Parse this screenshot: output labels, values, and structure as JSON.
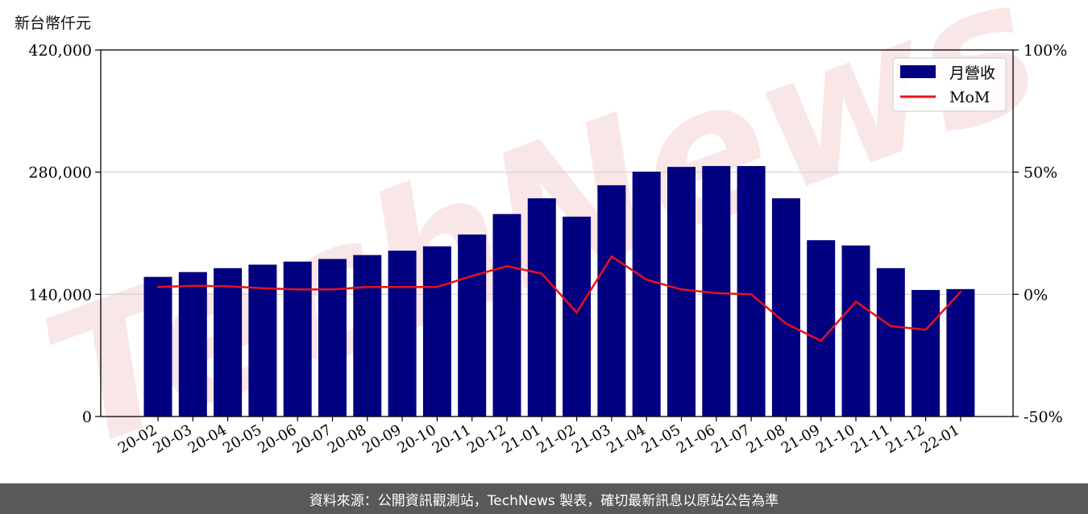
{
  "chart_data": {
    "type": "bar",
    "categories": [
      "20-02",
      "20-03",
      "20-04",
      "20-05",
      "20-06",
      "20-07",
      "20-08",
      "20-09",
      "20-10",
      "20-11",
      "20-12",
      "21-01",
      "21-02",
      "21-03",
      "21-04",
      "21-05",
      "21-06",
      "21-07",
      "21-08",
      "21-09",
      "21-10",
      "21-11",
      "21-12",
      "22-01"
    ],
    "series": [
      {
        "name": "月營收",
        "type": "bar",
        "axis": "left",
        "color": "#000080",
        "values": [
          160000,
          165500,
          170000,
          174000,
          177500,
          180500,
          185000,
          190000,
          195000,
          208500,
          232000,
          250000,
          229000,
          265000,
          280500,
          286000,
          287000,
          287000,
          250000,
          202000,
          196000,
          170000,
          145000,
          146000
        ]
      },
      {
        "name": "MoM",
        "type": "line",
        "axis": "right",
        "color": "#e8111a",
        "values": [
          3,
          3.5,
          3.3,
          2.5,
          2,
          2,
          3,
          3,
          3,
          7.5,
          11.5,
          8.5,
          -7.5,
          15.5,
          6,
          2,
          0.5,
          0,
          -12,
          -19,
          -3,
          -13,
          -14.5,
          1
        ]
      }
    ],
    "ylabel": "新台幣仟元",
    "ylim": [
      0,
      420000
    ],
    "yticks": [
      "0",
      "140,000",
      "280,000",
      "420,000"
    ],
    "y2lim": [
      -50,
      100
    ],
    "y2ticks": [
      "-50%",
      "0%",
      "50%",
      "100%"
    ],
    "grid": "horizontal",
    "legend_position": "top-right"
  },
  "watermark": "TechNews",
  "footer": {
    "source": "資料來源：公開資訊觀測站，TechNews 製表，確切最新訊息以原站公告為準"
  }
}
